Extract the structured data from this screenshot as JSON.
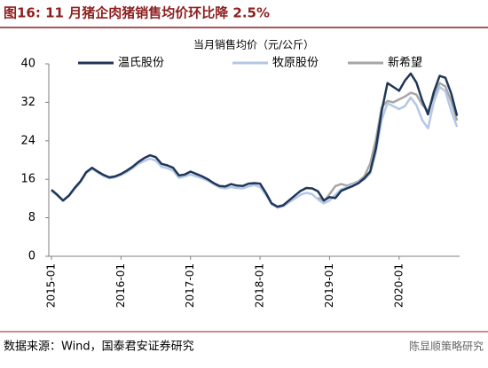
{
  "chart_data": {
    "type": "line",
    "title": "图16: 11 月猪企肉猪销售均价环比降 2.5%",
    "subtitle": "当月销售均价（元/公斤）",
    "source": "数据来源：Wind，国泰君安证券研究",
    "watermark": "陈显顺策略研究",
    "x": [
      "2015-01",
      "2015-02",
      "2015-03",
      "2015-04",
      "2015-05",
      "2015-06",
      "2015-07",
      "2015-08",
      "2015-09",
      "2015-10",
      "2015-11",
      "2015-12",
      "2016-01",
      "2016-02",
      "2016-03",
      "2016-04",
      "2016-05",
      "2016-06",
      "2016-07",
      "2016-08",
      "2016-09",
      "2016-10",
      "2016-11",
      "2016-12",
      "2017-01",
      "2017-02",
      "2017-03",
      "2017-04",
      "2017-05",
      "2017-06",
      "2017-07",
      "2017-08",
      "2017-09",
      "2017-10",
      "2017-11",
      "2017-12",
      "2018-01",
      "2018-02",
      "2018-03",
      "2018-04",
      "2018-05",
      "2018-06",
      "2018-07",
      "2018-08",
      "2018-09",
      "2018-10",
      "2018-11",
      "2018-12",
      "2019-01",
      "2019-02",
      "2019-03",
      "2019-04",
      "2019-05",
      "2019-06",
      "2019-07",
      "2019-08",
      "2019-09",
      "2019-10",
      "2019-11",
      "2019-12",
      "2020-01",
      "2020-02",
      "2020-03",
      "2020-04",
      "2020-05",
      "2020-06",
      "2020-07",
      "2020-08",
      "2020-09",
      "2020-10",
      "2020-11"
    ],
    "xticks": [
      "2015-01",
      "2016-01",
      "2017-01",
      "2018-01",
      "2019-01",
      "2020-01"
    ],
    "ylim": [
      0,
      40
    ],
    "yticks": [
      0,
      8,
      16,
      24,
      32,
      40
    ],
    "grid": false,
    "legend": "top",
    "series": [
      {
        "name": "温氏股份",
        "color": "#1f3658",
        "values": [
          13.8,
          12.8,
          11.6,
          12.6,
          14.2,
          15.6,
          17.5,
          18.4,
          17.6,
          16.9,
          16.4,
          16.6,
          17.1,
          17.8,
          18.6,
          19.6,
          20.4,
          21.0,
          20.6,
          19.2,
          18.9,
          18.4,
          16.8,
          17.0,
          17.6,
          17.1,
          16.6,
          16.0,
          15.2,
          14.6,
          14.5,
          15.0,
          14.7,
          14.6,
          15.1,
          15.2,
          15.1,
          13.2,
          11.0,
          10.3,
          10.6,
          11.6,
          12.6,
          13.6,
          14.2,
          14.1,
          13.5,
          11.6,
          12.3,
          12.1,
          13.6,
          14.1,
          14.6,
          15.2,
          16.2,
          17.6,
          22.5,
          30.2,
          36.0,
          35.2,
          34.4,
          36.5,
          38.0,
          36.1,
          32.4,
          29.5,
          34.2,
          37.5,
          37.1,
          33.8,
          29.2
        ]
      },
      {
        "name": "牧原股份",
        "color": "#b4c7e7",
        "values": [
          13.6,
          12.6,
          11.5,
          12.5,
          14.0,
          15.4,
          17.3,
          18.2,
          17.4,
          16.7,
          16.2,
          16.4,
          16.9,
          17.5,
          18.3,
          19.2,
          19.8,
          20.3,
          19.9,
          18.6,
          18.3,
          17.8,
          16.3,
          16.6,
          17.0,
          16.6,
          16.2,
          15.7,
          15.0,
          14.3,
          14.1,
          14.4,
          14.2,
          14.1,
          14.5,
          14.8,
          14.4,
          12.8,
          10.8,
          10.1,
          10.4,
          11.2,
          12.0,
          12.8,
          13.2,
          12.9,
          11.8,
          11.0,
          11.6,
          12.8,
          13.9,
          14.4,
          14.9,
          15.4,
          16.0,
          17.2,
          21.6,
          28.4,
          31.8,
          31.2,
          30.6,
          31.2,
          33.0,
          31.4,
          28.3,
          26.6,
          32.1,
          35.2,
          34.3,
          30.2,
          26.9
        ]
      },
      {
        "name": "新希望",
        "color": "#a6a6a6",
        "values": [
          null,
          null,
          null,
          null,
          null,
          null,
          null,
          null,
          null,
          null,
          null,
          null,
          null,
          null,
          null,
          null,
          null,
          null,
          null,
          null,
          null,
          null,
          null,
          null,
          null,
          null,
          null,
          null,
          null,
          null,
          null,
          null,
          null,
          null,
          null,
          null,
          null,
          null,
          null,
          null,
          null,
          null,
          null,
          null,
          null,
          null,
          12.2,
          11.4,
          12.9,
          14.6,
          15.0,
          14.7,
          15.1,
          15.6,
          16.6,
          19.2,
          24.3,
          31.0,
          32.3,
          32.0,
          32.6,
          33.2,
          34.0,
          33.6,
          31.5,
          30.2,
          33.4,
          36.0,
          35.3,
          32.2,
          28.2
        ]
      }
    ]
  }
}
